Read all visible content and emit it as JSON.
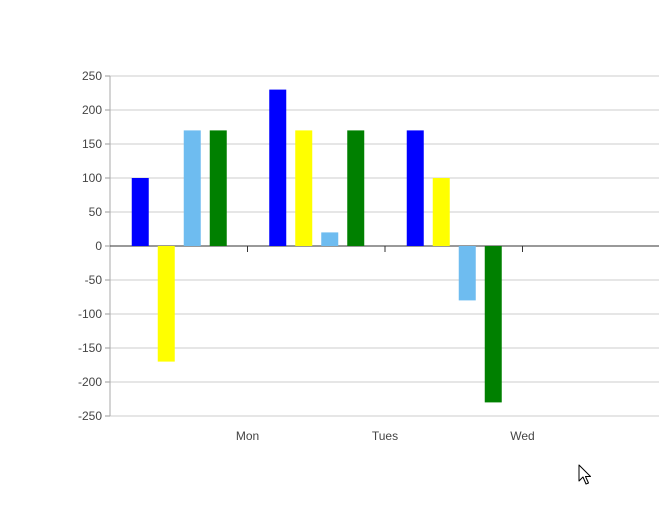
{
  "chart_data": {
    "type": "bar",
    "categories": [
      "Mon",
      "Tues",
      "Wed"
    ],
    "series": [
      {
        "values": [
          100,
          230,
          170
        ],
        "color": "#0000ff"
      },
      {
        "values": [
          -170,
          170,
          100
        ],
        "color": "#ffff00"
      },
      {
        "values": [
          170,
          20,
          -80
        ],
        "color": "#6ebcf0"
      },
      {
        "values": [
          170,
          170,
          -230
        ],
        "color": "#008000"
      }
    ],
    "y_ticks": [
      "250",
      "200",
      "150",
      "100",
      "50",
      "0",
      "-50",
      "-100",
      "-150",
      "-200",
      "-250"
    ],
    "ylim": [
      -250,
      250
    ],
    "grid": true,
    "legend": "none",
    "title": "",
    "xlabel": "",
    "ylabel": ""
  },
  "cursor": {
    "icon": "mouse-pointer-icon"
  }
}
